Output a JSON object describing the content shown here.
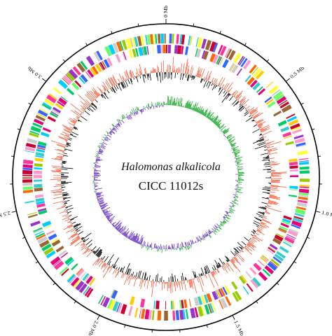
{
  "title": {
    "organism": "Halomonas alkalicola",
    "strain": "CICC 11012s"
  },
  "genome": {
    "total_mb": 3.5,
    "tick_labels": [
      {
        "text": "0 Mb",
        "value": 0.0
      },
      {
        "text": "0.5 Mb",
        "value": 0.5
      },
      {
        "text": "1.0 Mb",
        "value": 1.0
      },
      {
        "text": "1.5 Mb",
        "value": 1.5
      },
      {
        "text": "2.0 Mb",
        "value": 2.0
      },
      {
        "text": "2.5 Mb",
        "value": 2.5
      },
      {
        "text": "3.0 Mb",
        "value": 3.0
      }
    ]
  },
  "tracks": {
    "cds_colors": [
      "#e6007e",
      "#ff6600",
      "#ffcc00",
      "#99cc00",
      "#00cc66",
      "#00ccff",
      "#3366ff",
      "#9933cc",
      "#ff3399",
      "#cc0033",
      "#ffff33",
      "#66ff66",
      "#33cccc",
      "#ff99cc",
      "#cccccc",
      "#996633"
    ],
    "gc_content": {
      "positive_color": "#f4603f",
      "negative_color": "#000000"
    },
    "gc_skew": {
      "positive_color": "#3bb54a",
      "negative_color": "#7b4fc9"
    }
  }
}
